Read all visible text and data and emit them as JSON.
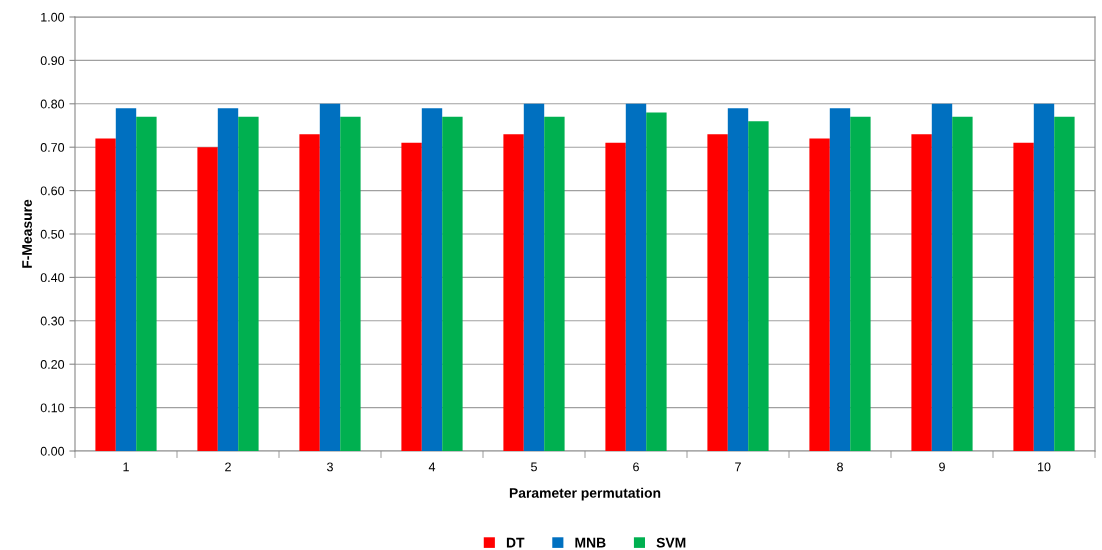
{
  "chart_data": {
    "type": "bar",
    "xlabel": "Parameter permutation",
    "ylabel": "F-Measure",
    "categories": [
      "1",
      "2",
      "3",
      "4",
      "5",
      "6",
      "7",
      "8",
      "9",
      "10"
    ],
    "series": [
      {
        "name": "DT",
        "color": "#ff0000",
        "values": [
          0.72,
          0.7,
          0.73,
          0.71,
          0.73,
          0.71,
          0.73,
          0.72,
          0.73,
          0.71
        ]
      },
      {
        "name": "MNB",
        "color": "#0070c0",
        "values": [
          0.79,
          0.79,
          0.8,
          0.79,
          0.8,
          0.8,
          0.79,
          0.79,
          0.8,
          0.8
        ]
      },
      {
        "name": "SVM",
        "color": "#00b050",
        "values": [
          0.77,
          0.77,
          0.77,
          0.77,
          0.77,
          0.78,
          0.76,
          0.77,
          0.77,
          0.77
        ]
      }
    ],
    "ylim": [
      0,
      1
    ],
    "yticks": [
      {
        "value": 0,
        "label": "0.00"
      },
      {
        "value": 0.1,
        "label": "0.10"
      },
      {
        "value": 0.2,
        "label": "0.20"
      },
      {
        "value": 0.3,
        "label": "0.30"
      },
      {
        "value": 0.4,
        "label": "0.40"
      },
      {
        "value": 0.5,
        "label": "0.50"
      },
      {
        "value": 0.6,
        "label": "0.60"
      },
      {
        "value": 0.7,
        "label": "0.70"
      },
      {
        "value": 0.8,
        "label": "0.80"
      },
      {
        "value": 0.9,
        "label": "0.90"
      },
      {
        "value": 1,
        "label": "1.00"
      }
    ],
    "grid": "y",
    "legend": "bottom"
  }
}
